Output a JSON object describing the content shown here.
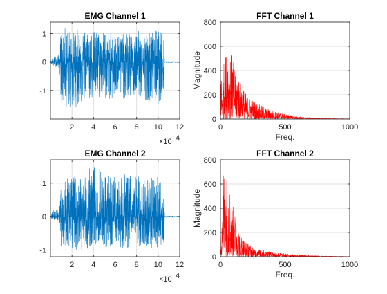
{
  "figure": {
    "background": "#ffffff"
  },
  "chart_data": [
    {
      "id": "emg1",
      "type": "line",
      "title": "EMG Channel 1",
      "xlabel": "",
      "ylabel": "",
      "xlim": [
        0,
        120000
      ],
      "ylim": [
        -2.0,
        1.4
      ],
      "xticks": [
        20000,
        40000,
        60000,
        80000,
        100000,
        120000
      ],
      "xtick_labels": [
        "2",
        "4",
        "6",
        "8",
        "10",
        "12"
      ],
      "yticks": [
        -1,
        0,
        1
      ],
      "ytick_labels": [
        "-1",
        "0",
        "1"
      ],
      "x_exponent_label": "×10",
      "x_exponent_power": "4",
      "grid": true,
      "color": "#0072BD",
      "series": [
        {
          "signal_x": [
            0,
            2500,
            8500,
            10000,
            20000,
            30000,
            40000,
            50000,
            60000,
            70000,
            80000,
            90000,
            100000,
            105500,
            106000,
            120000
          ],
          "amplitude_upper": [
            0.02,
            0.2,
            0.25,
            1.3,
            1.05,
            1.2,
            1.1,
            1.1,
            1.0,
            1.05,
            1.1,
            1.05,
            1.15,
            0.95,
            0.02,
            0.02
          ],
          "amplitude_lower": [
            -0.02,
            -0.15,
            -0.2,
            -1.55,
            -1.7,
            -1.4,
            -1.3,
            -1.3,
            -1.35,
            -1.3,
            -1.25,
            -1.35,
            -1.5,
            -1.1,
            -0.02,
            -0.02
          ]
        }
      ]
    },
    {
      "id": "fft1",
      "type": "line",
      "title": "FFT Channel 1",
      "xlabel": "Freq.",
      "ylabel": "Magnitude",
      "xlim": [
        0,
        1000
      ],
      "ylim": [
        0,
        800
      ],
      "xticks": [
        0,
        500,
        1000
      ],
      "xtick_labels": [
        "0",
        "500",
        "1000"
      ],
      "yticks": [
        0,
        200,
        400,
        600,
        800
      ],
      "ytick_labels": [
        "0",
        "200",
        "400",
        "600",
        "800"
      ],
      "grid": true,
      "color": "#FF0000",
      "series": [
        {
          "envelope_x": [
            0,
            10,
            30,
            60,
            80,
            100,
            150,
            200,
            250,
            300,
            400,
            500,
            600,
            700,
            800,
            1000
          ],
          "envelope_y": [
            600,
            300,
            500,
            640,
            560,
            480,
            340,
            200,
            160,
            120,
            70,
            40,
            20,
            10,
            5,
            2
          ]
        }
      ]
    },
    {
      "id": "emg2",
      "type": "line",
      "title": "EMG Channel 2",
      "xlabel": "",
      "ylabel": "",
      "xlim": [
        0,
        120000
      ],
      "ylim": [
        -1.2,
        1.7
      ],
      "xticks": [
        20000,
        40000,
        60000,
        80000,
        100000,
        120000
      ],
      "xtick_labels": [
        "2",
        "4",
        "6",
        "8",
        "10",
        "12"
      ],
      "yticks": [
        -1,
        0,
        1
      ],
      "ytick_labels": [
        "-1",
        "0",
        "1"
      ],
      "x_exponent_label": "×10",
      "x_exponent_power": "4",
      "grid": true,
      "color": "#0072BD",
      "series": [
        {
          "signal_x": [
            0,
            2500,
            8500,
            10000,
            20000,
            30000,
            40000,
            50000,
            60000,
            70000,
            80000,
            90000,
            100000,
            105500,
            106000,
            120000
          ],
          "amplitude_upper": [
            0.02,
            0.2,
            0.25,
            1.0,
            1.25,
            1.2,
            1.6,
            1.3,
            1.2,
            1.3,
            1.2,
            1.25,
            1.2,
            1.05,
            0.02,
            0.02
          ],
          "amplitude_lower": [
            -0.02,
            -0.12,
            -0.2,
            -0.9,
            -0.95,
            -1.05,
            -0.9,
            -0.95,
            -1.0,
            -0.95,
            -0.95,
            -0.9,
            -1.0,
            -0.85,
            -0.02,
            -0.02
          ]
        }
      ]
    },
    {
      "id": "fft2",
      "type": "line",
      "title": "FFT Channel 2",
      "xlabel": "Freq.",
      "ylabel": "Magnitude",
      "xlim": [
        0,
        1000
      ],
      "ylim": [
        0,
        800
      ],
      "xticks": [
        0,
        500,
        1000
      ],
      "xtick_labels": [
        "0",
        "500",
        "1000"
      ],
      "yticks": [
        0,
        200,
        400,
        600,
        800
      ],
      "ytick_labels": [
        "0",
        "200",
        "400",
        "600",
        "800"
      ],
      "grid": true,
      "color": "#FF0000",
      "series": [
        {
          "envelope_x": [
            0,
            10,
            20,
            40,
            60,
            80,
            100,
            150,
            200,
            250,
            300,
            400,
            500,
            600,
            800,
            1000
          ],
          "envelope_y": [
            150,
            500,
            760,
            700,
            650,
            560,
            400,
            200,
            120,
            80,
            60,
            40,
            25,
            15,
            5,
            2
          ]
        }
      ]
    }
  ]
}
